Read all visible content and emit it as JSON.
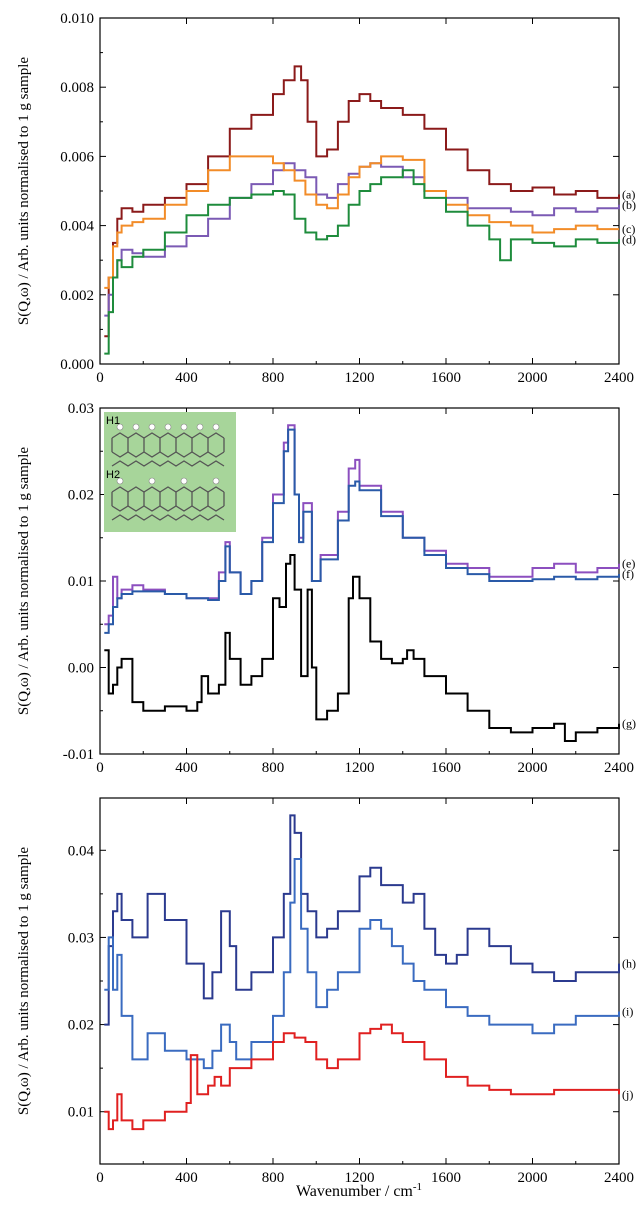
{
  "figure": {
    "xlabel": "Wavenumber / cm",
    "xlabel_sup": "-1"
  },
  "chart_data": [
    {
      "type": "line",
      "panel": "top",
      "ylabel": "S(Q,ω) / Arb. units normalised to 1 g sample",
      "xlim": [
        0,
        2400
      ],
      "ylim": [
        0,
        0.01
      ],
      "xticks": [
        0,
        400,
        800,
        1200,
        1600,
        2000,
        2400
      ],
      "yticks": [
        0.0,
        0.002,
        0.004,
        0.006,
        0.008,
        0.01
      ],
      "ytick_labels": [
        "0.000",
        "0.002",
        "0.004",
        "0.006",
        "0.008",
        "0.010"
      ],
      "grid": false,
      "step": true,
      "series": [
        {
          "name": "(a)",
          "color": "#8b1a1a",
          "x": [
            20,
            40,
            60,
            80,
            100,
            150,
            200,
            300,
            400,
            500,
            600,
            700,
            800,
            850,
            900,
            930,
            960,
            1000,
            1050,
            1100,
            1150,
            1200,
            1250,
            1300,
            1400,
            1500,
            1600,
            1700,
            1800,
            1900,
            2000,
            2100,
            2200,
            2300,
            2400
          ],
          "y": [
            0.0008,
            0.0025,
            0.0035,
            0.0042,
            0.0045,
            0.0044,
            0.0046,
            0.0048,
            0.0052,
            0.006,
            0.0068,
            0.0072,
            0.0078,
            0.0082,
            0.0086,
            0.0082,
            0.007,
            0.006,
            0.0062,
            0.007,
            0.0076,
            0.0078,
            0.0076,
            0.0074,
            0.0072,
            0.0068,
            0.0062,
            0.0056,
            0.0052,
            0.005,
            0.0051,
            0.0049,
            0.005,
            0.0048,
            0.0049
          ]
        },
        {
          "name": "(b)",
          "color": "#7b5ab4",
          "x": [
            20,
            40,
            60,
            80,
            100,
            150,
            200,
            300,
            400,
            500,
            600,
            700,
            800,
            850,
            900,
            950,
            1000,
            1050,
            1100,
            1150,
            1200,
            1250,
            1300,
            1400,
            1500,
            1600,
            1700,
            1800,
            1900,
            2000,
            2100,
            2200,
            2300,
            2400
          ],
          "y": [
            0.0014,
            0.002,
            0.0025,
            0.003,
            0.0033,
            0.0032,
            0.0031,
            0.0034,
            0.0037,
            0.0042,
            0.0048,
            0.0052,
            0.0056,
            0.0058,
            0.0056,
            0.0054,
            0.0049,
            0.0048,
            0.0052,
            0.0055,
            0.0057,
            0.0058,
            0.0057,
            0.0054,
            0.005,
            0.0048,
            0.0045,
            0.0045,
            0.0044,
            0.0043,
            0.0045,
            0.0044,
            0.0045,
            0.0046
          ]
        },
        {
          "name": "(c)",
          "color": "#f28c28",
          "x": [
            20,
            40,
            60,
            80,
            100,
            150,
            200,
            300,
            400,
            500,
            600,
            700,
            800,
            850,
            900,
            950,
            1000,
            1050,
            1100,
            1150,
            1200,
            1250,
            1300,
            1400,
            1500,
            1600,
            1700,
            1800,
            1900,
            2000,
            2100,
            2200,
            2300,
            2400
          ],
          "y": [
            0.0022,
            0.0025,
            0.0034,
            0.0038,
            0.004,
            0.0041,
            0.0042,
            0.0046,
            0.005,
            0.0056,
            0.006,
            0.006,
            0.0058,
            0.0056,
            0.0053,
            0.0049,
            0.0046,
            0.0045,
            0.0049,
            0.0054,
            0.0057,
            0.0058,
            0.006,
            0.0059,
            0.005,
            0.0046,
            0.0043,
            0.0041,
            0.004,
            0.0038,
            0.0039,
            0.004,
            0.0039,
            0.0039
          ]
        },
        {
          "name": "(d)",
          "color": "#1e8c3c",
          "x": [
            20,
            40,
            60,
            80,
            100,
            150,
            200,
            300,
            400,
            500,
            600,
            700,
            800,
            850,
            900,
            950,
            1000,
            1050,
            1100,
            1150,
            1200,
            1250,
            1300,
            1400,
            1450,
            1500,
            1600,
            1700,
            1800,
            1850,
            1900,
            2000,
            2100,
            2200,
            2300,
            2400
          ],
          "y": [
            0.0003,
            0.0015,
            0.0025,
            0.003,
            0.0028,
            0.0031,
            0.0033,
            0.0038,
            0.0043,
            0.0046,
            0.0048,
            0.0049,
            0.005,
            0.0049,
            0.0042,
            0.0038,
            0.0036,
            0.0037,
            0.004,
            0.0046,
            0.005,
            0.0052,
            0.0054,
            0.0056,
            0.0052,
            0.0048,
            0.0044,
            0.004,
            0.0036,
            0.003,
            0.0036,
            0.0035,
            0.0034,
            0.0036,
            0.0035,
            0.0036
          ]
        }
      ]
    },
    {
      "type": "line",
      "panel": "middle",
      "ylabel": "S(Q,ω) / Arb. units normalised to 1 g sample",
      "xlim": [
        0,
        2400
      ],
      "ylim": [
        -0.01,
        0.03
      ],
      "xticks": [
        0,
        400,
        800,
        1200,
        1600,
        2000,
        2400
      ],
      "yticks": [
        -0.01,
        0.0,
        0.01,
        0.02,
        0.03
      ],
      "ytick_labels": [
        "-0.01",
        "0.00",
        "0.01",
        "0.02",
        "0.03"
      ],
      "grid": false,
      "step": true,
      "inset_labels": [
        "H1",
        "H2"
      ],
      "series": [
        {
          "name": "(e)",
          "color": "#8c4fbf",
          "x": [
            20,
            40,
            60,
            80,
            100,
            150,
            200,
            300,
            400,
            500,
            550,
            580,
            600,
            650,
            700,
            750,
            800,
            850,
            870,
            900,
            920,
            940,
            980,
            1020,
            1100,
            1150,
            1180,
            1200,
            1300,
            1400,
            1500,
            1600,
            1700,
            1800,
            1900,
            2000,
            2100,
            2200,
            2300,
            2400
          ],
          "y": [
            0.005,
            0.006,
            0.0105,
            0.008,
            0.009,
            0.0095,
            0.009,
            0.0085,
            0.008,
            0.008,
            0.011,
            0.0145,
            0.011,
            0.0085,
            0.01,
            0.015,
            0.02,
            0.026,
            0.028,
            0.02,
            0.015,
            0.019,
            0.01,
            0.013,
            0.018,
            0.023,
            0.024,
            0.021,
            0.018,
            0.015,
            0.0135,
            0.012,
            0.0115,
            0.0105,
            0.0105,
            0.0115,
            0.012,
            0.011,
            0.0115,
            0.012
          ]
        },
        {
          "name": "(f)",
          "color": "#2a5aa8",
          "x": [
            20,
            40,
            60,
            80,
            100,
            150,
            200,
            300,
            400,
            500,
            550,
            580,
            600,
            650,
            700,
            750,
            800,
            850,
            870,
            900,
            920,
            940,
            980,
            1020,
            1100,
            1150,
            1180,
            1200,
            1300,
            1400,
            1500,
            1600,
            1700,
            1800,
            1900,
            2000,
            2100,
            2200,
            2300,
            2400
          ],
          "y": [
            0.004,
            0.005,
            0.007,
            0.008,
            0.0085,
            0.0088,
            0.0088,
            0.0085,
            0.008,
            0.0078,
            0.01,
            0.014,
            0.011,
            0.0085,
            0.01,
            0.0145,
            0.019,
            0.025,
            0.0275,
            0.02,
            0.0145,
            0.018,
            0.01,
            0.0125,
            0.017,
            0.021,
            0.0215,
            0.0205,
            0.0175,
            0.015,
            0.013,
            0.0115,
            0.0108,
            0.01,
            0.01,
            0.0102,
            0.0105,
            0.0102,
            0.0105,
            0.0108
          ]
        },
        {
          "name": "(g)",
          "color": "#000000",
          "x": [
            20,
            40,
            60,
            80,
            100,
            150,
            200,
            300,
            400,
            450,
            470,
            500,
            550,
            580,
            600,
            650,
            700,
            750,
            800,
            830,
            860,
            880,
            900,
            930,
            960,
            980,
            1000,
            1050,
            1100,
            1150,
            1170,
            1200,
            1250,
            1300,
            1350,
            1400,
            1420,
            1450,
            1500,
            1600,
            1700,
            1800,
            1900,
            2000,
            2100,
            2150,
            2200,
            2300,
            2400
          ],
          "y": [
            0.002,
            -0.003,
            -0.002,
            0.0,
            0.001,
            -0.004,
            -0.005,
            -0.0045,
            -0.005,
            -0.004,
            -0.001,
            -0.003,
            -0.002,
            0.004,
            0.001,
            -0.002,
            -0.001,
            0.001,
            0.008,
            0.007,
            0.012,
            0.013,
            0.009,
            -0.001,
            0.009,
            0.0,
            -0.006,
            -0.005,
            -0.003,
            0.008,
            0.0105,
            0.008,
            0.003,
            0.001,
            0.0005,
            0.001,
            0.002,
            0.001,
            -0.001,
            -0.003,
            -0.005,
            -0.007,
            -0.0075,
            -0.007,
            -0.0065,
            -0.0085,
            -0.0075,
            -0.007,
            -0.0065
          ]
        }
      ]
    },
    {
      "type": "line",
      "panel": "bottom",
      "ylabel": "S(Q,ω) / Arb. units normalised to 1 g sample",
      "xlim": [
        0,
        2400
      ],
      "ylim": [
        0.004,
        0.046
      ],
      "xticks": [
        0,
        400,
        800,
        1200,
        1600,
        2000,
        2400
      ],
      "yticks": [
        0.01,
        0.02,
        0.03,
        0.04
      ],
      "ytick_labels": [
        "0.01",
        "0.02",
        "0.03",
        "0.04"
      ],
      "grid": false,
      "step": true,
      "series": [
        {
          "name": "(h)",
          "color": "#2b3a8f",
          "x": [
            20,
            40,
            60,
            80,
            100,
            150,
            220,
            300,
            400,
            480,
            520,
            560,
            600,
            630,
            700,
            800,
            850,
            880,
            900,
            930,
            960,
            1000,
            1050,
            1100,
            1200,
            1250,
            1300,
            1350,
            1400,
            1450,
            1500,
            1550,
            1600,
            1650,
            1700,
            1800,
            1900,
            2000,
            2100,
            2200,
            2300,
            2400
          ],
          "y": [
            0.02,
            0.029,
            0.033,
            0.035,
            0.032,
            0.03,
            0.035,
            0.032,
            0.027,
            0.023,
            0.026,
            0.033,
            0.029,
            0.024,
            0.026,
            0.03,
            0.035,
            0.044,
            0.042,
            0.035,
            0.033,
            0.03,
            0.031,
            0.033,
            0.037,
            0.038,
            0.036,
            0.036,
            0.034,
            0.035,
            0.031,
            0.028,
            0.027,
            0.028,
            0.031,
            0.029,
            0.027,
            0.026,
            0.025,
            0.026,
            0.026,
            0.027
          ]
        },
        {
          "name": "(i)",
          "color": "#3a6bc0",
          "x": [
            20,
            40,
            60,
            80,
            100,
            150,
            220,
            300,
            400,
            480,
            520,
            560,
            600,
            630,
            700,
            800,
            850,
            880,
            900,
            930,
            960,
            1000,
            1050,
            1100,
            1200,
            1250,
            1300,
            1350,
            1400,
            1450,
            1500,
            1600,
            1700,
            1800,
            1900,
            2000,
            2100,
            2200,
            2300,
            2400
          ],
          "y": [
            0.024,
            0.03,
            0.024,
            0.028,
            0.021,
            0.016,
            0.019,
            0.017,
            0.016,
            0.015,
            0.017,
            0.02,
            0.018,
            0.016,
            0.018,
            0.021,
            0.026,
            0.034,
            0.039,
            0.031,
            0.026,
            0.022,
            0.024,
            0.026,
            0.031,
            0.032,
            0.031,
            0.029,
            0.027,
            0.025,
            0.024,
            0.022,
            0.021,
            0.02,
            0.02,
            0.019,
            0.02,
            0.021,
            0.021,
            0.0215
          ]
        },
        {
          "name": "(j)",
          "color": "#e02020",
          "x": [
            20,
            40,
            60,
            80,
            100,
            150,
            200,
            300,
            400,
            420,
            450,
            500,
            530,
            560,
            600,
            700,
            800,
            850,
            900,
            950,
            1000,
            1050,
            1100,
            1200,
            1250,
            1300,
            1350,
            1400,
            1500,
            1600,
            1700,
            1800,
            1900,
            2000,
            2100,
            2200,
            2300,
            2400
          ],
          "y": [
            0.01,
            0.008,
            0.009,
            0.012,
            0.009,
            0.008,
            0.009,
            0.01,
            0.011,
            0.0165,
            0.012,
            0.013,
            0.014,
            0.013,
            0.015,
            0.016,
            0.018,
            0.019,
            0.0185,
            0.018,
            0.016,
            0.015,
            0.016,
            0.019,
            0.0195,
            0.02,
            0.019,
            0.018,
            0.016,
            0.014,
            0.013,
            0.0125,
            0.012,
            0.012,
            0.0125,
            0.0125,
            0.0125,
            0.012
          ]
        }
      ]
    }
  ]
}
